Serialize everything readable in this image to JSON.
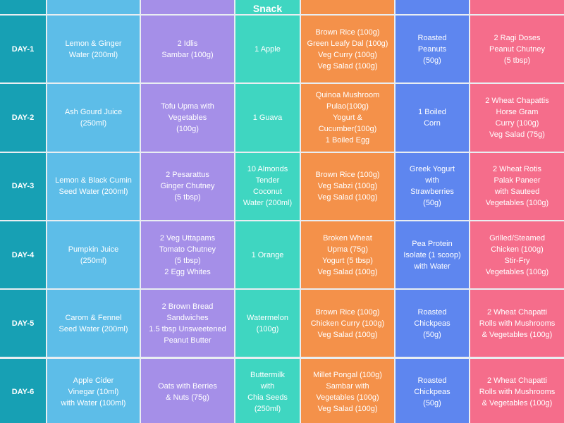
{
  "header": {
    "snack": "Snack"
  },
  "table": {
    "rows": [
      {
        "day": "DAY-1",
        "cells": [
          [
            "Lemon & Ginger",
            "Water (200ml)"
          ],
          [
            "2 Idlis",
            "Sambar (100g)"
          ],
          [
            "1 Apple"
          ],
          [
            "Brown Rice (100g)",
            "Green Leafy Dal (100g)",
            "Veg Curry (100g)",
            "Veg Salad (100g)"
          ],
          [
            "Roasted",
            "Peanuts",
            "(50g)"
          ],
          [
            "2 Ragi Doses",
            "Peanut Chutney",
            "(5 tbsp)"
          ]
        ]
      },
      {
        "day": "DAY-2",
        "cells": [
          [
            "Ash Gourd Juice",
            "(250ml)"
          ],
          [
            "Tofu Upma with",
            "Vegetables",
            "(100g)"
          ],
          [
            "1 Guava"
          ],
          [
            "Quinoa Mushroom",
            "Pulao(100g)",
            "Yogurt &",
            "Cucumber(100g)",
            "1 Boiled Egg"
          ],
          [
            "1 Boiled",
            "Corn"
          ],
          [
            "2 Wheat Chapattis",
            "Horse Gram",
            "Curry (100g)",
            "Veg Salad (75g)"
          ]
        ]
      },
      {
        "day": "DAY-3",
        "cells": [
          [
            "Lemon & Black Cumin",
            "Seed Water (200ml)"
          ],
          [
            "2 Pesarattus",
            "Ginger Chutney",
            "(5 tbsp)"
          ],
          [
            "10 Almonds",
            "Tender",
            "Coconut",
            "Water (200ml)"
          ],
          [
            "Brown Rice (100g)",
            "Veg Sabzi (100g)",
            "Veg Salad (100g)"
          ],
          [
            "Greek Yogurt",
            "with",
            "Strawberries",
            "(50g)"
          ],
          [
            "2 Wheat Rotis",
            "Palak Paneer",
            "with Sauteed",
            "Vegetables (100g)"
          ]
        ]
      },
      {
        "day": "DAY-4",
        "cells": [
          [
            "Pumpkin Juice",
            "(250ml)"
          ],
          [
            "2 Veg Uttapams",
            "Tomato Chutney",
            "(5 tbsp)",
            "2 Egg Whites"
          ],
          [
            "1 Orange"
          ],
          [
            "Broken Wheat",
            "Upma (75g)",
            "Yogurt (5 tbsp)",
            "Veg Salad (100g)"
          ],
          [
            "Pea Protein",
            "Isolate (1 scoop)",
            "with Water"
          ],
          [
            "Grilled/Steamed",
            "Chicken (100g)",
            "Stir-Fry",
            "Vegetables (100g)"
          ]
        ]
      },
      {
        "day": "DAY-5",
        "cells": [
          [
            "Carom & Fennel",
            "Seed Water (200ml)"
          ],
          [
            "2 Brown Bread",
            "Sandwiches",
            "1.5 tbsp Unsweetened",
            "Peanut Butter"
          ],
          [
            "Watermelon",
            "(100g)"
          ],
          [
            "Brown Rice (100g)",
            "Chicken Curry (100g)",
            "Veg Salad (100g)"
          ],
          [
            "Roasted",
            "Chickpeas",
            "(50g)"
          ],
          [
            "2 Wheat Chapatti",
            "Rolls with Mushrooms",
            "& Vegetables (100g)"
          ]
        ]
      },
      {
        "day": "DAY-6",
        "cells": [
          [
            "Apple Cider",
            "Vinegar (10ml)",
            "with Water (100ml)"
          ],
          [
            "Oats with Berries",
            "& Nuts (75g)"
          ],
          [
            "Buttermilk",
            "with",
            "Chia Seeds",
            "(250ml)"
          ],
          [
            "Millet Pongal (100g)",
            "Sambar with",
            "Vegetables (100g)",
            "Veg Salad (100g)"
          ],
          [
            "Roasted",
            "Chickpeas",
            "(50g)"
          ],
          [
            "2 Wheat Chapatti",
            "Rolls with Mushrooms",
            "& Vegetables (100g)"
          ]
        ]
      }
    ]
  }
}
